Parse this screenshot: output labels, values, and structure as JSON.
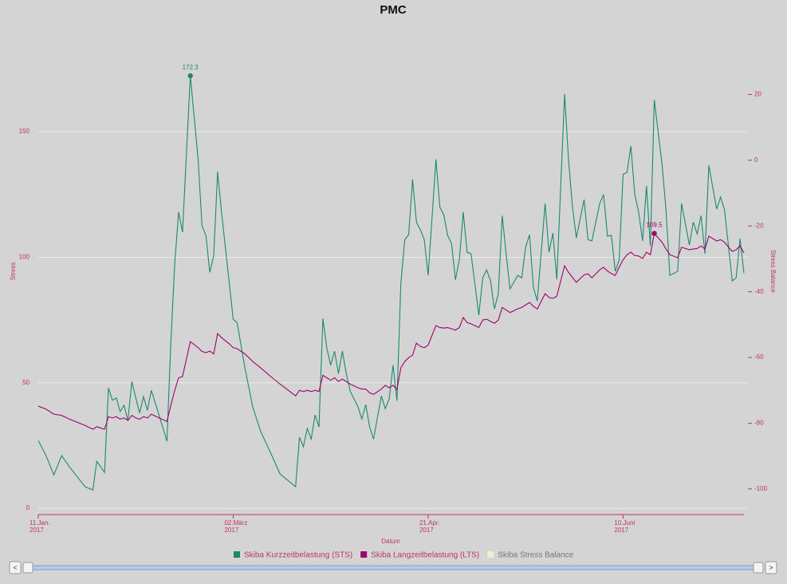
{
  "chart_data": {
    "type": "line",
    "title": "PMC",
    "x_label": "Datum",
    "y_label": "Stress",
    "y2_label": "Stress Balance",
    "xlim": [
      "2017-01-11",
      "2017-07-11"
    ],
    "xticks": [
      {
        "value": "2017-01-11",
        "label": "11.Jan.\n2017"
      },
      {
        "value": "2017-03-02",
        "label": "02.März\n2017"
      },
      {
        "value": "2017-04-21",
        "label": "21.Apr.\n2017"
      },
      {
        "value": "2017-06-10",
        "label": "10.Juni\n2017"
      }
    ],
    "ylim": [
      -2.5,
      185
    ],
    "yticks": [
      0,
      50,
      100,
      150
    ],
    "y2lim": [
      -107.8,
      35.4
    ],
    "y2ticks": [
      -100,
      -80,
      -60,
      -40,
      -20,
      0,
      20
    ],
    "grid": true,
    "x": [
      "2017-01-11",
      "2017-01-13",
      "2017-01-15",
      "2017-01-17",
      "2017-01-19",
      "2017-01-23",
      "2017-01-25",
      "2017-01-26",
      "2017-01-28",
      "2017-01-29",
      "2017-01-30",
      "2017-01-31",
      "2017-02-01",
      "2017-02-02",
      "2017-02-03",
      "2017-02-04",
      "2017-02-05",
      "2017-02-06",
      "2017-02-07",
      "2017-02-08",
      "2017-02-09",
      "2017-02-11",
      "2017-02-13",
      "2017-02-14",
      "2017-02-15",
      "2017-02-16",
      "2017-02-17",
      "2017-02-19",
      "2017-02-21",
      "2017-02-22",
      "2017-02-23",
      "2017-02-24",
      "2017-02-25",
      "2017-02-26",
      "2017-02-27",
      "2017-03-01",
      "2017-03-02",
      "2017-03-03",
      "2017-03-05",
      "2017-03-07",
      "2017-03-09",
      "2017-03-12",
      "2017-03-14",
      "2017-03-18",
      "2017-03-19",
      "2017-03-20",
      "2017-03-21",
      "2017-03-22",
      "2017-03-23",
      "2017-03-24",
      "2017-03-25",
      "2017-03-26",
      "2017-03-27",
      "2017-03-28",
      "2017-03-29",
      "2017-03-30",
      "2017-03-31",
      "2017-04-01",
      "2017-04-03",
      "2017-04-04",
      "2017-04-05",
      "2017-04-06",
      "2017-04-07",
      "2017-04-09",
      "2017-04-10",
      "2017-04-11",
      "2017-04-12",
      "2017-04-13",
      "2017-04-14",
      "2017-04-15",
      "2017-04-16",
      "2017-04-17",
      "2017-04-18",
      "2017-04-19",
      "2017-04-20",
      "2017-04-21",
      "2017-04-23",
      "2017-04-24",
      "2017-04-25",
      "2017-04-26",
      "2017-04-27",
      "2017-04-28",
      "2017-04-29",
      "2017-04-30",
      "2017-05-01",
      "2017-05-02",
      "2017-05-04",
      "2017-05-05",
      "2017-05-06",
      "2017-05-07",
      "2017-05-08",
      "2017-05-09",
      "2017-05-10",
      "2017-05-11",
      "2017-05-12",
      "2017-05-14",
      "2017-05-15",
      "2017-05-16",
      "2017-05-17",
      "2017-05-18",
      "2017-05-19",
      "2017-05-21",
      "2017-05-22",
      "2017-05-23",
      "2017-05-24",
      "2017-05-26",
      "2017-05-27",
      "2017-05-28",
      "2017-05-29",
      "2017-05-31",
      "2017-06-01",
      "2017-06-02",
      "2017-06-04",
      "2017-06-05",
      "2017-06-06",
      "2017-06-07",
      "2017-06-08",
      "2017-06-09",
      "2017-06-10",
      "2017-06-11",
      "2017-06-12",
      "2017-06-13",
      "2017-06-14",
      "2017-06-15",
      "2017-06-16",
      "2017-06-17",
      "2017-06-18",
      "2017-06-20",
      "2017-06-21",
      "2017-06-22",
      "2017-06-24",
      "2017-06-25",
      "2017-06-27",
      "2017-06-28",
      "2017-06-29",
      "2017-06-30",
      "2017-07-01",
      "2017-07-02",
      "2017-07-04",
      "2017-07-05",
      "2017-07-06",
      "2017-07-08",
      "2017-07-09",
      "2017-07-10",
      "2017-07-11"
    ],
    "series": [
      {
        "name": "Skiba Kurzzeitbelastung (STS)",
        "color": "#1a8a6e",
        "label_max": true,
        "values": [
          27,
          21,
          13.3,
          21,
          16.5,
          8.6,
          7.3,
          18.7,
          14.3,
          48,
          43,
          44,
          38.5,
          41,
          35,
          50.5,
          44,
          38,
          44.5,
          39,
          47,
          37,
          26.7,
          66,
          97.5,
          118,
          110,
          172.3,
          139,
          112.5,
          108.7,
          94,
          100.7,
          134,
          118,
          89.6,
          75.3,
          74,
          56,
          40.4,
          30.8,
          20.7,
          13.7,
          8.6,
          28.3,
          24.5,
          31.8,
          27.6,
          37.2,
          32.4,
          75.6,
          64,
          57,
          62.6,
          53.7,
          62.6,
          53.7,
          46.7,
          40.4,
          35.6,
          41.3,
          32.4,
          27.6,
          44.8,
          39.7,
          43.5,
          57,
          42.9,
          89.6,
          107,
          109,
          131,
          114,
          111,
          107,
          92.8,
          139,
          120,
          117,
          108.7,
          105.5,
          91,
          99,
          118,
          102,
          101.4,
          76.9,
          91.8,
          95,
          90.6,
          79.4,
          85.5,
          116.6,
          101.4,
          87.4,
          92.8,
          91.8,
          104,
          109,
          88,
          82.6,
          121.4,
          102,
          109.6,
          91.2,
          165,
          139,
          120.4,
          107.7,
          123,
          107,
          106.5,
          121.4,
          125,
          108.4,
          108.7,
          94.4,
          99,
          133,
          133.8,
          144.3,
          125,
          118,
          106.5,
          128.4,
          104.5,
          162.7,
          137,
          119,
          92.8,
          94.4,
          121.4,
          104.9,
          114,
          109.3,
          116.6,
          101.4,
          136.6,
          119.2,
          124,
          119,
          90.6,
          91.8,
          107.4,
          93.7
        ]
      },
      {
        "name": "Skiba Langzeitbelastung (LTS)",
        "color": "#a0006e",
        "label_max": true,
        "values": [
          40.7,
          39.5,
          37.5,
          37,
          35.5,
          33,
          31.5,
          32.5,
          31.5,
          36.5,
          36,
          36.5,
          35.5,
          36,
          35,
          37,
          36,
          35.5,
          36.5,
          36,
          37.5,
          36,
          34.6,
          41,
          47,
          52,
          52.5,
          66.4,
          64,
          62.5,
          62,
          62.6,
          61.5,
          69.6,
          68,
          65.5,
          64,
          63.6,
          61.5,
          58.5,
          56,
          52,
          49.5,
          44.8,
          47,
          46.5,
          47,
          46.5,
          47,
          46.5,
          53,
          52,
          51,
          52,
          50.5,
          51.5,
          50.5,
          49.5,
          48,
          47.5,
          47.5,
          46,
          45.4,
          47.5,
          49,
          48,
          49,
          47.3,
          56,
          58.5,
          60,
          61,
          65.8,
          64.5,
          64,
          65,
          72.8,
          72,
          71.8,
          72,
          71.5,
          71,
          72,
          76,
          74,
          73.5,
          72,
          75,
          75.3,
          74.5,
          73.7,
          75,
          80,
          79,
          78,
          79.5,
          80,
          81,
          82,
          80.5,
          79.4,
          85.5,
          84,
          83.6,
          84.5,
          96.6,
          94,
          92,
          90,
          93,
          93.4,
          91.8,
          95,
          96,
          94.5,
          93.5,
          92.8,
          96,
          99,
          101,
          102,
          100.7,
          100.5,
          99.5,
          102,
          101,
          109.5,
          106,
          103.3,
          101,
          99.8,
          104,
          103,
          103.3,
          103.5,
          104.5,
          103.3,
          108.4,
          106.5,
          107,
          106,
          102.3,
          103,
          104.5,
          101.7
        ]
      },
      {
        "name": "Skiba Stress Balance",
        "color": "#f0eecc",
        "axis": "y2",
        "visible": false
      }
    ]
  },
  "navigator": {
    "prev": "<",
    "next": ">"
  }
}
